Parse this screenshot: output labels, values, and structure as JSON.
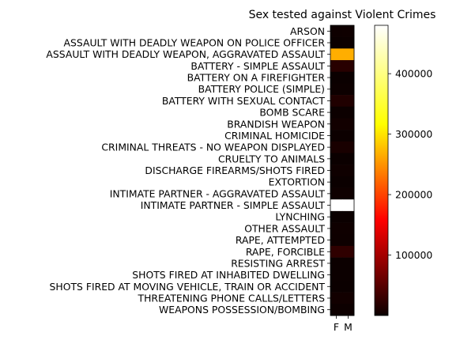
{
  "chart_data": {
    "type": "heatmap",
    "title": "Sex tested against Violent Crimes",
    "xlabel": "",
    "ylabel": "",
    "columns": [
      "F",
      "M"
    ],
    "rows": [
      "ARSON",
      "ASSAULT WITH DEADLY WEAPON ON POLICE OFFICER",
      "ASSAULT WITH DEADLY WEAPON, AGGRAVATED ASSAULT",
      "BATTERY - SIMPLE ASSAULT",
      "BATTERY ON A FIREFIGHTER",
      "BATTERY POLICE (SIMPLE)",
      "BATTERY WITH SEXUAL CONTACT",
      "BOMB SCARE",
      "BRANDISH WEAPON",
      "CRIMINAL HOMICIDE",
      "CRIMINAL THREATS - NO WEAPON DISPLAYED",
      "CRUELTY TO ANIMALS",
      "DISCHARGE FIREARMS/SHOTS FIRED",
      "EXTORTION",
      "INTIMATE PARTNER - AGGRAVATED ASSAULT",
      "INTIMATE PARTNER - SIMPLE ASSAULT",
      "LYNCHING",
      "OTHER ASSAULT",
      "RAPE, ATTEMPTED",
      "RAPE, FORCIBLE",
      "RESISTING ARREST",
      "SHOTS FIRED AT INHABITED DWELLING",
      "SHOTS FIRED AT MOVING VEHICLE, TRAIN OR ACCIDENT",
      "THREATENING PHONE CALLS/LETTERS",
      "WEAPONS POSSESSION/BOMBING"
    ],
    "values": [
      [
        2000,
        3000
      ],
      [
        500,
        800
      ],
      [
        300000,
        300000
      ],
      [
        20000,
        20000
      ],
      [
        200,
        200
      ],
      [
        1500,
        1500
      ],
      [
        15000,
        15000
      ],
      [
        800,
        800
      ],
      [
        5000,
        5000
      ],
      [
        1000,
        1000
      ],
      [
        10000,
        10000
      ],
      [
        500,
        500
      ],
      [
        3000,
        3000
      ],
      [
        500,
        500
      ],
      [
        3000,
        3000
      ],
      [
        480000,
        480000
      ],
      [
        0,
        0
      ],
      [
        3000,
        3000
      ],
      [
        2000,
        2000
      ],
      [
        25000,
        25000
      ],
      [
        1000,
        1000
      ],
      [
        1000,
        1000
      ],
      [
        200,
        200
      ],
      [
        5000,
        5000
      ],
      [
        1500,
        1500
      ]
    ],
    "colormap": "hot",
    "colorbar": {
      "range": [
        0,
        480000
      ],
      "ticks": [
        100000,
        200000,
        300000,
        400000
      ],
      "tick_labels": [
        "100000",
        "200000",
        "300000",
        "400000"
      ]
    },
    "grid": false
  }
}
